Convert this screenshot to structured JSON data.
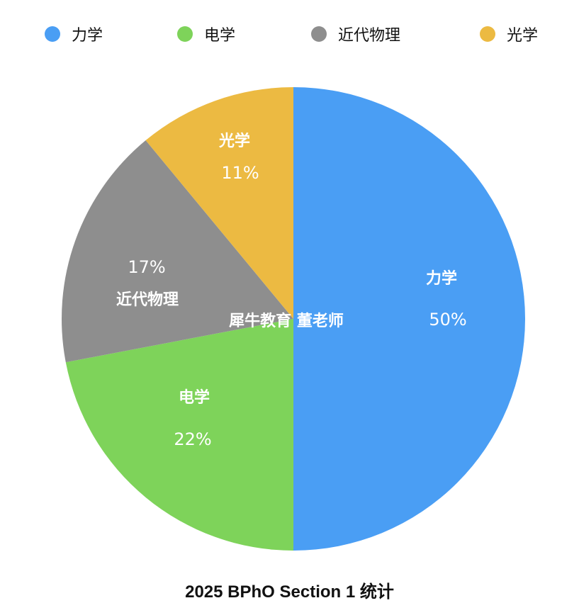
{
  "legend": [
    {
      "label": "力学",
      "color": "#4A9EF4"
    },
    {
      "label": "电学",
      "color": "#7ED35A"
    },
    {
      "label": "近代物理",
      "color": "#8E8E8E"
    },
    {
      "label": "光学",
      "color": "#ECBA42"
    }
  ],
  "slices": [
    {
      "label": "力学",
      "pct": "50%"
    },
    {
      "label": "电学",
      "pct": "22%"
    },
    {
      "label": "近代物理",
      "pct": "17%"
    },
    {
      "label": "光学",
      "pct": "11%"
    }
  ],
  "watermark": "犀牛教育 董老师",
  "title": "2025 BPhO Section 1 统计",
  "chart_data": {
    "type": "pie",
    "title": "2025 BPhO Section 1 统计",
    "categories": [
      "力学",
      "电学",
      "近代物理",
      "光学"
    ],
    "values": [
      50,
      22,
      17,
      11
    ],
    "colors": [
      "#4A9EF4",
      "#7ED35A",
      "#8E8E8E",
      "#ECBA42"
    ],
    "unit": "%",
    "start_angle": "12 o'clock, clockwise",
    "legend_position": "top",
    "annotations": [
      "犀牛教育 董老师"
    ]
  }
}
